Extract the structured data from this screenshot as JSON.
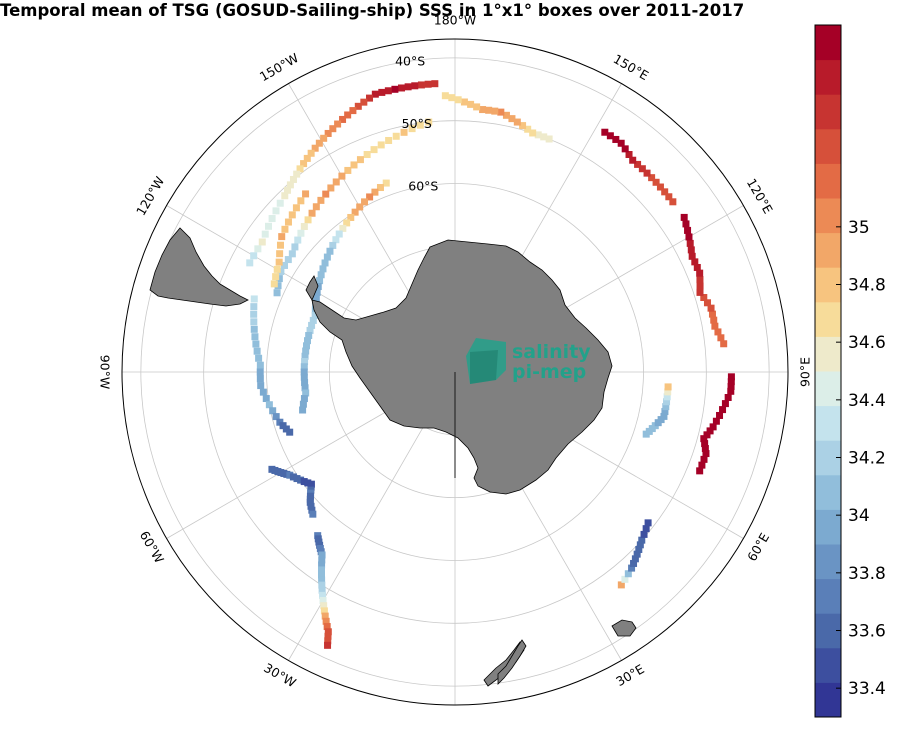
{
  "title": "Temporal mean of TSG (GOSUD-Sailing-ship) SSS in 1°x1° boxes over 2011-2017",
  "meridian_labels": [
    {
      "text": "30°W",
      "lon": -30
    },
    {
      "text": "30°E",
      "lon": 30
    },
    {
      "text": "60°W",
      "lon": -60
    },
    {
      "text": "60°E",
      "lon": 60
    },
    {
      "text": "90°W",
      "lon": -90
    },
    {
      "text": "90°E",
      "lon": 90
    },
    {
      "text": "120°W",
      "lon": -120
    },
    {
      "text": "120°E",
      "lon": 120
    },
    {
      "text": "150°W",
      "lon": -150
    },
    {
      "text": "150°E",
      "lon": 150
    },
    {
      "text": "180°W",
      "lon": 180
    }
  ],
  "parallel_labels": [
    {
      "text": "60°S",
      "lat": -60
    },
    {
      "text": "50°S",
      "lat": -50
    },
    {
      "text": "40°S",
      "lat": -40
    }
  ],
  "colorbar": {
    "min": 33.3,
    "max": 35.7,
    "step": 0.1,
    "ticks": [
      "33.4",
      "33.6",
      "33.8",
      "34",
      "34.2",
      "34.4",
      "34.6",
      "34.8",
      "35"
    ],
    "colors": [
      "#313695",
      "#3d4f9f",
      "#4a69a9",
      "#5a7fb8",
      "#6a94c4",
      "#7caad0",
      "#91bedb",
      "#abd1e5",
      "#c4e3ed",
      "#dceee8",
      "#eeeacb",
      "#f7dc9a",
      "#f7c47f",
      "#f2a768",
      "#ec8a55",
      "#e36b45",
      "#d6503a",
      "#c73431",
      "#b81b2a",
      "#a50026"
    ]
  },
  "logo": {
    "line1": "salinity",
    "line2": "pi-mep",
    "color": "#1aa58c"
  },
  "land_color": "#808080",
  "sss_tracks": [
    {
      "name": "drake-passage-dense",
      "points": [
        [
          -62,
          -57,
          33.5
        ],
        [
          -60,
          -58,
          33.5
        ],
        [
          -58,
          -59,
          33.6
        ],
        [
          -55,
          -60,
          33.5
        ],
        [
          -52,
          -61,
          33.4
        ],
        [
          -50,
          -60,
          33.6
        ],
        [
          -48,
          -59,
          33.5
        ],
        [
          -45,
          -58,
          33.6
        ]
      ]
    },
    {
      "name": "weddell-north",
      "points": [
        [
          -40,
          -56,
          33.6
        ],
        [
          -38,
          -55,
          33.5
        ],
        [
          -36,
          -54,
          33.8
        ],
        [
          -34,
          -52,
          33.9
        ],
        [
          -32,
          -50,
          34.0
        ],
        [
          -30,
          -48,
          34.2
        ],
        [
          -28,
          -46,
          34.6
        ],
        [
          -26,
          -44,
          34.9
        ],
        [
          -25,
          -42,
          35.0
        ]
      ]
    },
    {
      "name": "east-30",
      "points": [
        [
          38,
          -47,
          34.6
        ],
        [
          42,
          -48,
          33.6
        ],
        [
          45,
          -49,
          33.5
        ],
        [
          48,
          -50,
          33.5
        ],
        [
          52,
          -51,
          33.4
        ]
      ]
    },
    {
      "name": "east-60",
      "points": [
        [
          68,
          -48,
          35.3
        ],
        [
          72,
          -48,
          35.5
        ],
        [
          75,
          -49,
          35.4
        ],
        [
          78,
          -48,
          35.6
        ],
        [
          82,
          -47,
          35.5
        ],
        [
          86,
          -46,
          35.5
        ],
        [
          89,
          -46,
          35.6
        ]
      ]
    },
    {
      "name": "east-inner",
      "points": [
        [
          72,
          -58,
          33.9
        ],
        [
          75,
          -57,
          33.9
        ],
        [
          78,
          -56,
          33.8
        ],
        [
          82,
          -56,
          34.0
        ],
        [
          86,
          -56,
          34.5
        ]
      ]
    },
    {
      "name": "east-indian",
      "points": [
        [
          96,
          -47,
          34.8
        ],
        [
          100,
          -48,
          34.8
        ],
        [
          104,
          -48,
          34.9
        ],
        [
          108,
          -49,
          35.0
        ],
        [
          112,
          -48,
          35.1
        ],
        [
          116,
          -48,
          35.1
        ],
        [
          120,
          -47,
          35.2
        ],
        [
          124,
          -46,
          35.3
        ]
      ]
    },
    {
      "name": "east-mid",
      "points": [
        [
          128,
          -46,
          34.9
        ],
        [
          132,
          -46,
          34.9
        ],
        [
          136,
          -46,
          35.0
        ],
        [
          140,
          -46,
          35.1
        ],
        [
          144,
          -45,
          35.3
        ],
        [
          148,
          -45,
          35.3
        ]
      ]
    },
    {
      "name": "ross-north",
      "points": [
        [
          158,
          -50,
          34.3
        ],
        [
          162,
          -50,
          34.4
        ],
        [
          166,
          -49,
          34.6
        ],
        [
          170,
          -48,
          34.7
        ],
        [
          174,
          -48,
          34.6
        ],
        [
          178,
          -47,
          34.5
        ],
        [
          -178,
          -46,
          34.4
        ]
      ]
    },
    {
      "name": "pacific-south",
      "points": [
        [
          -176,
          -44,
          35.0
        ],
        [
          -172,
          -44,
          35.1
        ],
        [
          -168,
          -44,
          35.2
        ],
        [
          -164,
          -44,
          35.1
        ],
        [
          -160,
          -45,
          34.9
        ],
        [
          -156,
          -46,
          34.8
        ],
        [
          -152,
          -47,
          34.7
        ],
        [
          -148,
          -48,
          34.6
        ],
        [
          -144,
          -49,
          34.5
        ],
        [
          -140,
          -50,
          34.3
        ],
        [
          -136,
          -51,
          34.3
        ],
        [
          -130,
          -52,
          34.2
        ],
        [
          -124,
          -53,
          34.3
        ],
        [
          -118,
          -53,
          34.1
        ]
      ]
    },
    {
      "name": "pacific-mid",
      "points": [
        [
          -174,
          -50,
          34.4
        ],
        [
          -168,
          -51,
          34.5
        ],
        [
          -162,
          -52,
          34.4
        ],
        [
          -156,
          -53,
          34.5
        ],
        [
          -150,
          -54,
          34.6
        ],
        [
          -144,
          -55,
          34.7
        ],
        [
          -138,
          -56,
          34.6
        ],
        [
          -132,
          -57,
          34.2
        ],
        [
          -126,
          -58,
          34.0
        ],
        [
          -120,
          -58,
          34.0
        ],
        [
          -114,
          -59,
          33.9
        ]
      ]
    },
    {
      "name": "pacific-inner",
      "points": [
        [
          -160,
          -58,
          34.4
        ],
        [
          -154,
          -59,
          34.7
        ],
        [
          -148,
          -60,
          34.6
        ],
        [
          -142,
          -61,
          34.3
        ],
        [
          -136,
          -62,
          34.0
        ],
        [
          -130,
          -63,
          33.9
        ],
        [
          -124,
          -64,
          33.9
        ],
        [
          -118,
          -65,
          33.8
        ],
        [
          -112,
          -66,
          34.0
        ],
        [
          -106,
          -66,
          34.0
        ],
        [
          -100,
          -66,
          33.9
        ],
        [
          -94,
          -66,
          34.0
        ],
        [
          -88,
          -66,
          33.8
        ],
        [
          -82,
          -66,
          33.9
        ],
        [
          -76,
          -65,
          33.8
        ]
      ]
    },
    {
      "name": "amundsen",
      "points": [
        [
          -110,
          -56,
          34.1
        ],
        [
          -104,
          -57,
          34.0
        ],
        [
          -98,
          -58,
          33.9
        ],
        [
          -92,
          -59,
          33.9
        ],
        [
          -86,
          -59,
          33.8
        ],
        [
          -80,
          -60,
          33.9
        ],
        [
          -74,
          -61,
          33.6
        ],
        [
          -70,
          -62,
          33.5
        ]
      ]
    },
    {
      "name": "west-south",
      "points": [
        [
          -140,
          -53,
          34.6
        ],
        [
          -134,
          -54,
          34.5
        ],
        [
          -128,
          -55,
          34.6
        ],
        [
          -122,
          -57,
          34.5
        ],
        [
          -116,
          -58,
          34.4
        ]
      ]
    }
  ]
}
